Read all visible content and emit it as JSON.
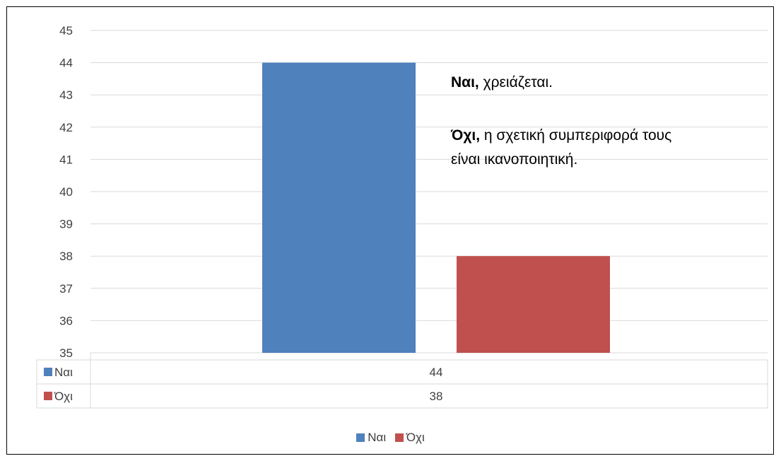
{
  "chart_data": {
    "type": "bar",
    "categories": [
      ""
    ],
    "series": [
      {
        "name": "Ναι",
        "values": [
          44
        ],
        "color": "#4F81BD"
      },
      {
        "name": "Όχι",
        "values": [
          38
        ],
        "color": "#C0504D"
      }
    ],
    "ylim": [
      35,
      45
    ],
    "yticks": [
      35,
      36,
      37,
      38,
      39,
      40,
      41,
      42,
      43,
      44,
      45
    ],
    "grid": true,
    "data_table": true,
    "legend_position": "bottom"
  },
  "annotation": {
    "line1_bold": "Ναι,",
    "line1_rest": " χρειάζεται.",
    "line2_bold": "Όχι,",
    "line2_rest": " η σχετική συμπεριφορά τους",
    "line3": "είναι ικανοποιητική."
  }
}
